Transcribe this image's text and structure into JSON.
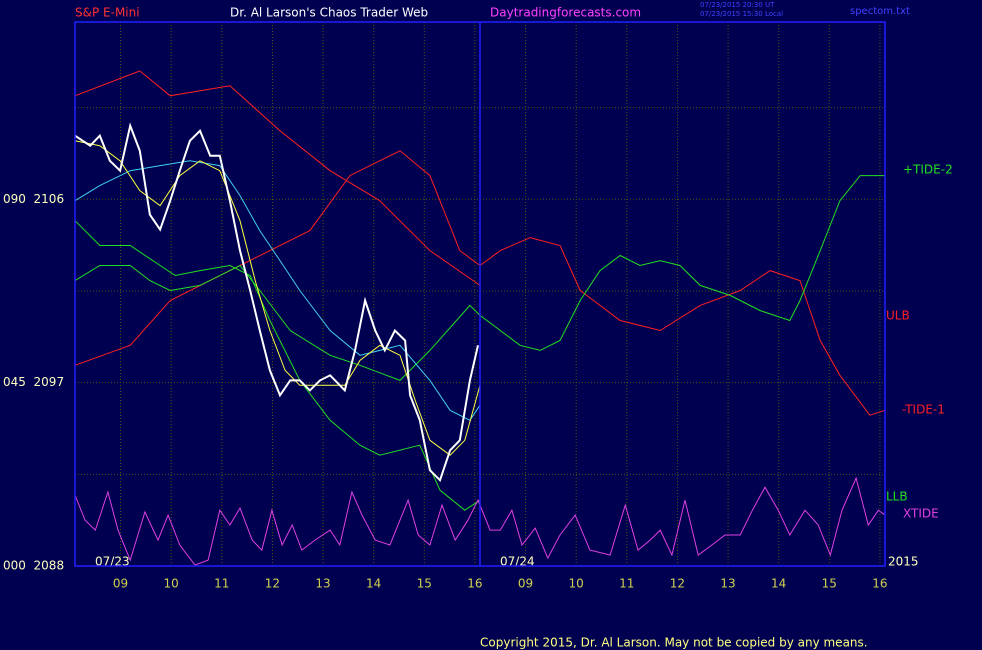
{
  "header": {
    "instrument": "S&P E-Mini",
    "site_title": "Dr. Al Larson's Chaos Trader Web",
    "url": "Daytradingforecasts.com",
    "time_ut": "07/23/2015 20:30 UT",
    "time_local": "07/23/2015 15:30 Local",
    "file": "spectom.txt"
  },
  "footer": "Copyright 2015, Dr. Al Larson. May not be copied by any means.",
  "chart_data": {
    "type": "line",
    "xlim": [
      0.1,
      16.1
    ],
    "xticks": [
      {
        "value": 1,
        "label": "09"
      },
      {
        "value": 2,
        "label": "10"
      },
      {
        "value": 3,
        "label": "11"
      },
      {
        "value": 4,
        "label": "12"
      },
      {
        "value": 5,
        "label": "13"
      },
      {
        "value": 6,
        "label": "14"
      },
      {
        "value": 7,
        "label": "15"
      },
      {
        "value": 8,
        "label": "16"
      },
      {
        "value": 9,
        "label": "09"
      },
      {
        "value": 10,
        "label": "10"
      },
      {
        "value": 11,
        "label": "11"
      },
      {
        "value": 12,
        "label": "12"
      },
      {
        "value": 13,
        "label": "13"
      },
      {
        "value": 14,
        "label": "14"
      },
      {
        "value": 15,
        "label": "15"
      },
      {
        "value": 16,
        "label": "16"
      }
    ],
    "ylim": [
      2088,
      2114.7
    ],
    "yticks": [
      {
        "value": 2088,
        "label": "000  2088"
      },
      {
        "value": 2097,
        "label": "045  2097"
      },
      {
        "value": 2106,
        "label": "090  2106"
      }
    ],
    "ygrid": [
      2092.5,
      2101.5,
      2110.5
    ],
    "grid": true,
    "day_break": 8.1,
    "date_labels": [
      "07/23",
      "07/24",
      "2015"
    ],
    "series": [
      {
        "color": "#ff2020",
        "name": "ULB",
        "x": [
          0.1,
          1.38,
          1.98,
          3.16,
          4.15,
          5.14,
          6.12,
          7.11,
          8.1
        ],
        "values": [
          2111.08,
          2112.3,
          2111.08,
          2111.57,
          2109.36,
          2107.4,
          2105.93,
          2103.48,
          2101.77
        ]
      },
      {
        "color": "#ff2020",
        "name": "-TIDE-1",
        "x": [
          0.1,
          1.19,
          1.98,
          3.36,
          4.74,
          5.53,
          6.52,
          7.11,
          7.7,
          8.1,
          8.5,
          9.09,
          9.68,
          10.08,
          10.87,
          11.66,
          12.45,
          13.24,
          13.83,
          14.42,
          14.82,
          15.21,
          15.8,
          16.1
        ],
        "values": [
          2097.85,
          2098.83,
          2101.03,
          2102.75,
          2104.46,
          2107.16,
          2108.38,
          2107.16,
          2103.48,
          2102.75,
          2103.48,
          2104.12,
          2103.73,
          2101.52,
          2100.05,
          2099.56,
          2100.79,
          2101.52,
          2102.5,
          2102.01,
          2099.07,
          2097.36,
          2095.4,
          2095.64
        ]
      },
      {
        "color": "#20e020",
        "name": "LLB",
        "x": [
          0.1,
          0.59,
          1.19,
          1.78,
          2.08,
          2.57,
          3.16,
          3.56,
          3.95,
          4.54,
          5.14,
          5.73,
          6.12,
          6.91,
          7.31,
          7.8,
          8.1
        ],
        "values": [
          2104.95,
          2103.73,
          2103.73,
          2102.75,
          2102.26,
          2102.5,
          2102.75,
          2102.26,
          2100.05,
          2097.11,
          2095.15,
          2093.93,
          2093.44,
          2093.93,
          2091.72,
          2090.74,
          2091.23
        ]
      },
      {
        "color": "#20e020",
        "name": "+TIDE-2",
        "x": [
          0.1,
          0.59,
          1.19,
          1.58,
          1.98,
          2.57,
          3.16,
          3.36,
          3.75,
          4.35,
          5.14,
          5.73,
          6.52,
          7.11,
          7.9,
          8.1,
          8.5,
          8.89,
          9.29,
          9.68,
          10.08,
          10.47,
          10.87,
          11.26,
          11.66,
          12.05,
          12.45,
          13.04,
          13.63,
          14.22,
          14.42,
          14.82,
          15.21,
          15.61,
          16.1
        ],
        "values": [
          2102.01,
          2102.75,
          2102.75,
          2102.01,
          2101.52,
          2101.77,
          2102.5,
          2102.75,
          2101.52,
          2099.56,
          2098.34,
          2097.85,
          2097.11,
          2098.58,
          2100.79,
          2100.3,
          2099.56,
          2098.83,
          2098.58,
          2099.07,
          2101.03,
          2102.5,
          2103.24,
          2102.75,
          2102.99,
          2102.75,
          2101.77,
          2101.28,
          2100.54,
          2100.05,
          2101.03,
          2103.48,
          2105.93,
          2107.16,
          2107.16
        ]
      },
      {
        "color": "#40d0f0",
        "x": [
          0.1,
          0.59,
          1.19,
          1.78,
          2.37,
          2.96,
          3.36,
          3.75,
          4.15,
          4.54,
          5.14,
          5.73,
          6.52,
          7.11,
          7.51,
          7.9,
          8.1
        ],
        "values": [
          2105.93,
          2106.67,
          2107.4,
          2107.65,
          2107.89,
          2107.65,
          2106.18,
          2104.46,
          2102.99,
          2101.52,
          2099.56,
          2098.34,
          2098.83,
          2097.11,
          2095.64,
          2095.15,
          2095.89
        ]
      },
      {
        "color": "#ffff40",
        "x": [
          0.1,
          0.59,
          0.99,
          1.38,
          1.78,
          2.17,
          2.57,
          2.96,
          3.36,
          3.66,
          3.95,
          4.25,
          4.54,
          4.94,
          5.43,
          5.73,
          6.12,
          6.52,
          6.82,
          7.11,
          7.51,
          7.8,
          8.1
        ],
        "values": [
          2108.87,
          2108.63,
          2107.89,
          2106.42,
          2105.69,
          2107.16,
          2107.89,
          2107.4,
          2104.95,
          2102.01,
          2099.56,
          2097.6,
          2096.87,
          2096.87,
          2096.87,
          2098.09,
          2098.83,
          2098.34,
          2096.13,
          2094.17,
          2093.44,
          2094.17,
          2096.87
        ]
      },
      {
        "color": "#ffffff",
        "x": [
          0.1,
          0.4,
          0.59,
          0.79,
          0.99,
          1.19,
          1.38,
          1.58,
          1.78,
          1.98,
          2.17,
          2.37,
          2.57,
          2.77,
          2.96,
          3.16,
          3.36,
          3.56,
          3.75,
          3.95,
          4.15,
          4.35,
          4.54,
          4.74,
          4.94,
          5.14,
          5.43,
          5.63,
          5.83,
          6.03,
          6.22,
          6.42,
          6.62,
          6.72,
          6.91,
          7.11,
          7.31,
          7.51,
          7.7,
          7.9,
          8.06
        ],
        "values": [
          2109.12,
          2108.63,
          2109.12,
          2107.89,
          2107.4,
          2109.61,
          2108.38,
          2105.24,
          2104.51,
          2105.93,
          2107.4,
          2108.87,
          2109.36,
          2108.14,
          2108.14,
          2105.93,
          2103.48,
          2101.52,
          2099.56,
          2097.6,
          2096.38,
          2097.11,
          2097.11,
          2096.62,
          2097.11,
          2097.36,
          2096.62,
          2098.58,
          2101.03,
          2099.56,
          2098.58,
          2099.56,
          2099.07,
          2096.38,
          2095.15,
          2092.7,
          2092.21,
          2093.68,
          2094.17,
          2097.11,
          2098.83
        ]
      },
      {
        "color": "#e040e0",
        "name": "XTIDE",
        "x": [
          0.1,
          0.3,
          0.5,
          0.75,
          0.95,
          1.19,
          1.48,
          1.74,
          1.94,
          2.17,
          2.47,
          2.73,
          2.96,
          3.16,
          3.36,
          3.6,
          3.79,
          3.99,
          4.19,
          4.39,
          4.58,
          4.84,
          5.14,
          5.33,
          5.57,
          5.77,
          6.03,
          6.32,
          6.68,
          6.88,
          7.11,
          7.35,
          7.61,
          7.86,
          8.06,
          8.3,
          8.5,
          8.73,
          8.93,
          9.19,
          9.44,
          9.68,
          9.98,
          10.27,
          10.67,
          10.97,
          11.22,
          11.46,
          11.66,
          11.89,
          12.15,
          12.41,
          12.68,
          12.94,
          13.24,
          13.48,
          13.73,
          13.99,
          14.22,
          14.52,
          14.78,
          15.02,
          15.25,
          15.53,
          15.77,
          15.97,
          16.1
        ],
        "values": [
          2091.48,
          2090.25,
          2089.76,
          2091.63,
          2089.76,
          2088.29,
          2090.65,
          2089.27,
          2090.5,
          2089.03,
          2088.05,
          2088.29,
          2090.74,
          2090.01,
          2090.84,
          2089.27,
          2088.78,
          2090.74,
          2089.03,
          2090.01,
          2088.78,
          2089.27,
          2089.76,
          2089.03,
          2091.63,
          2090.5,
          2089.27,
          2089.03,
          2091.23,
          2089.52,
          2089.03,
          2090.99,
          2089.27,
          2090.25,
          2091.23,
          2089.76,
          2089.76,
          2090.74,
          2089.03,
          2089.86,
          2088.39,
          2089.52,
          2090.5,
          2088.78,
          2088.54,
          2090.99,
          2088.78,
          2089.27,
          2089.76,
          2088.54,
          2091.23,
          2088.54,
          2089.03,
          2089.52,
          2089.52,
          2090.74,
          2091.87,
          2090.74,
          2089.52,
          2090.74,
          2090.01,
          2088.54,
          2090.74,
          2092.31,
          2090.01,
          2090.74,
          2090.5
        ]
      }
    ]
  }
}
